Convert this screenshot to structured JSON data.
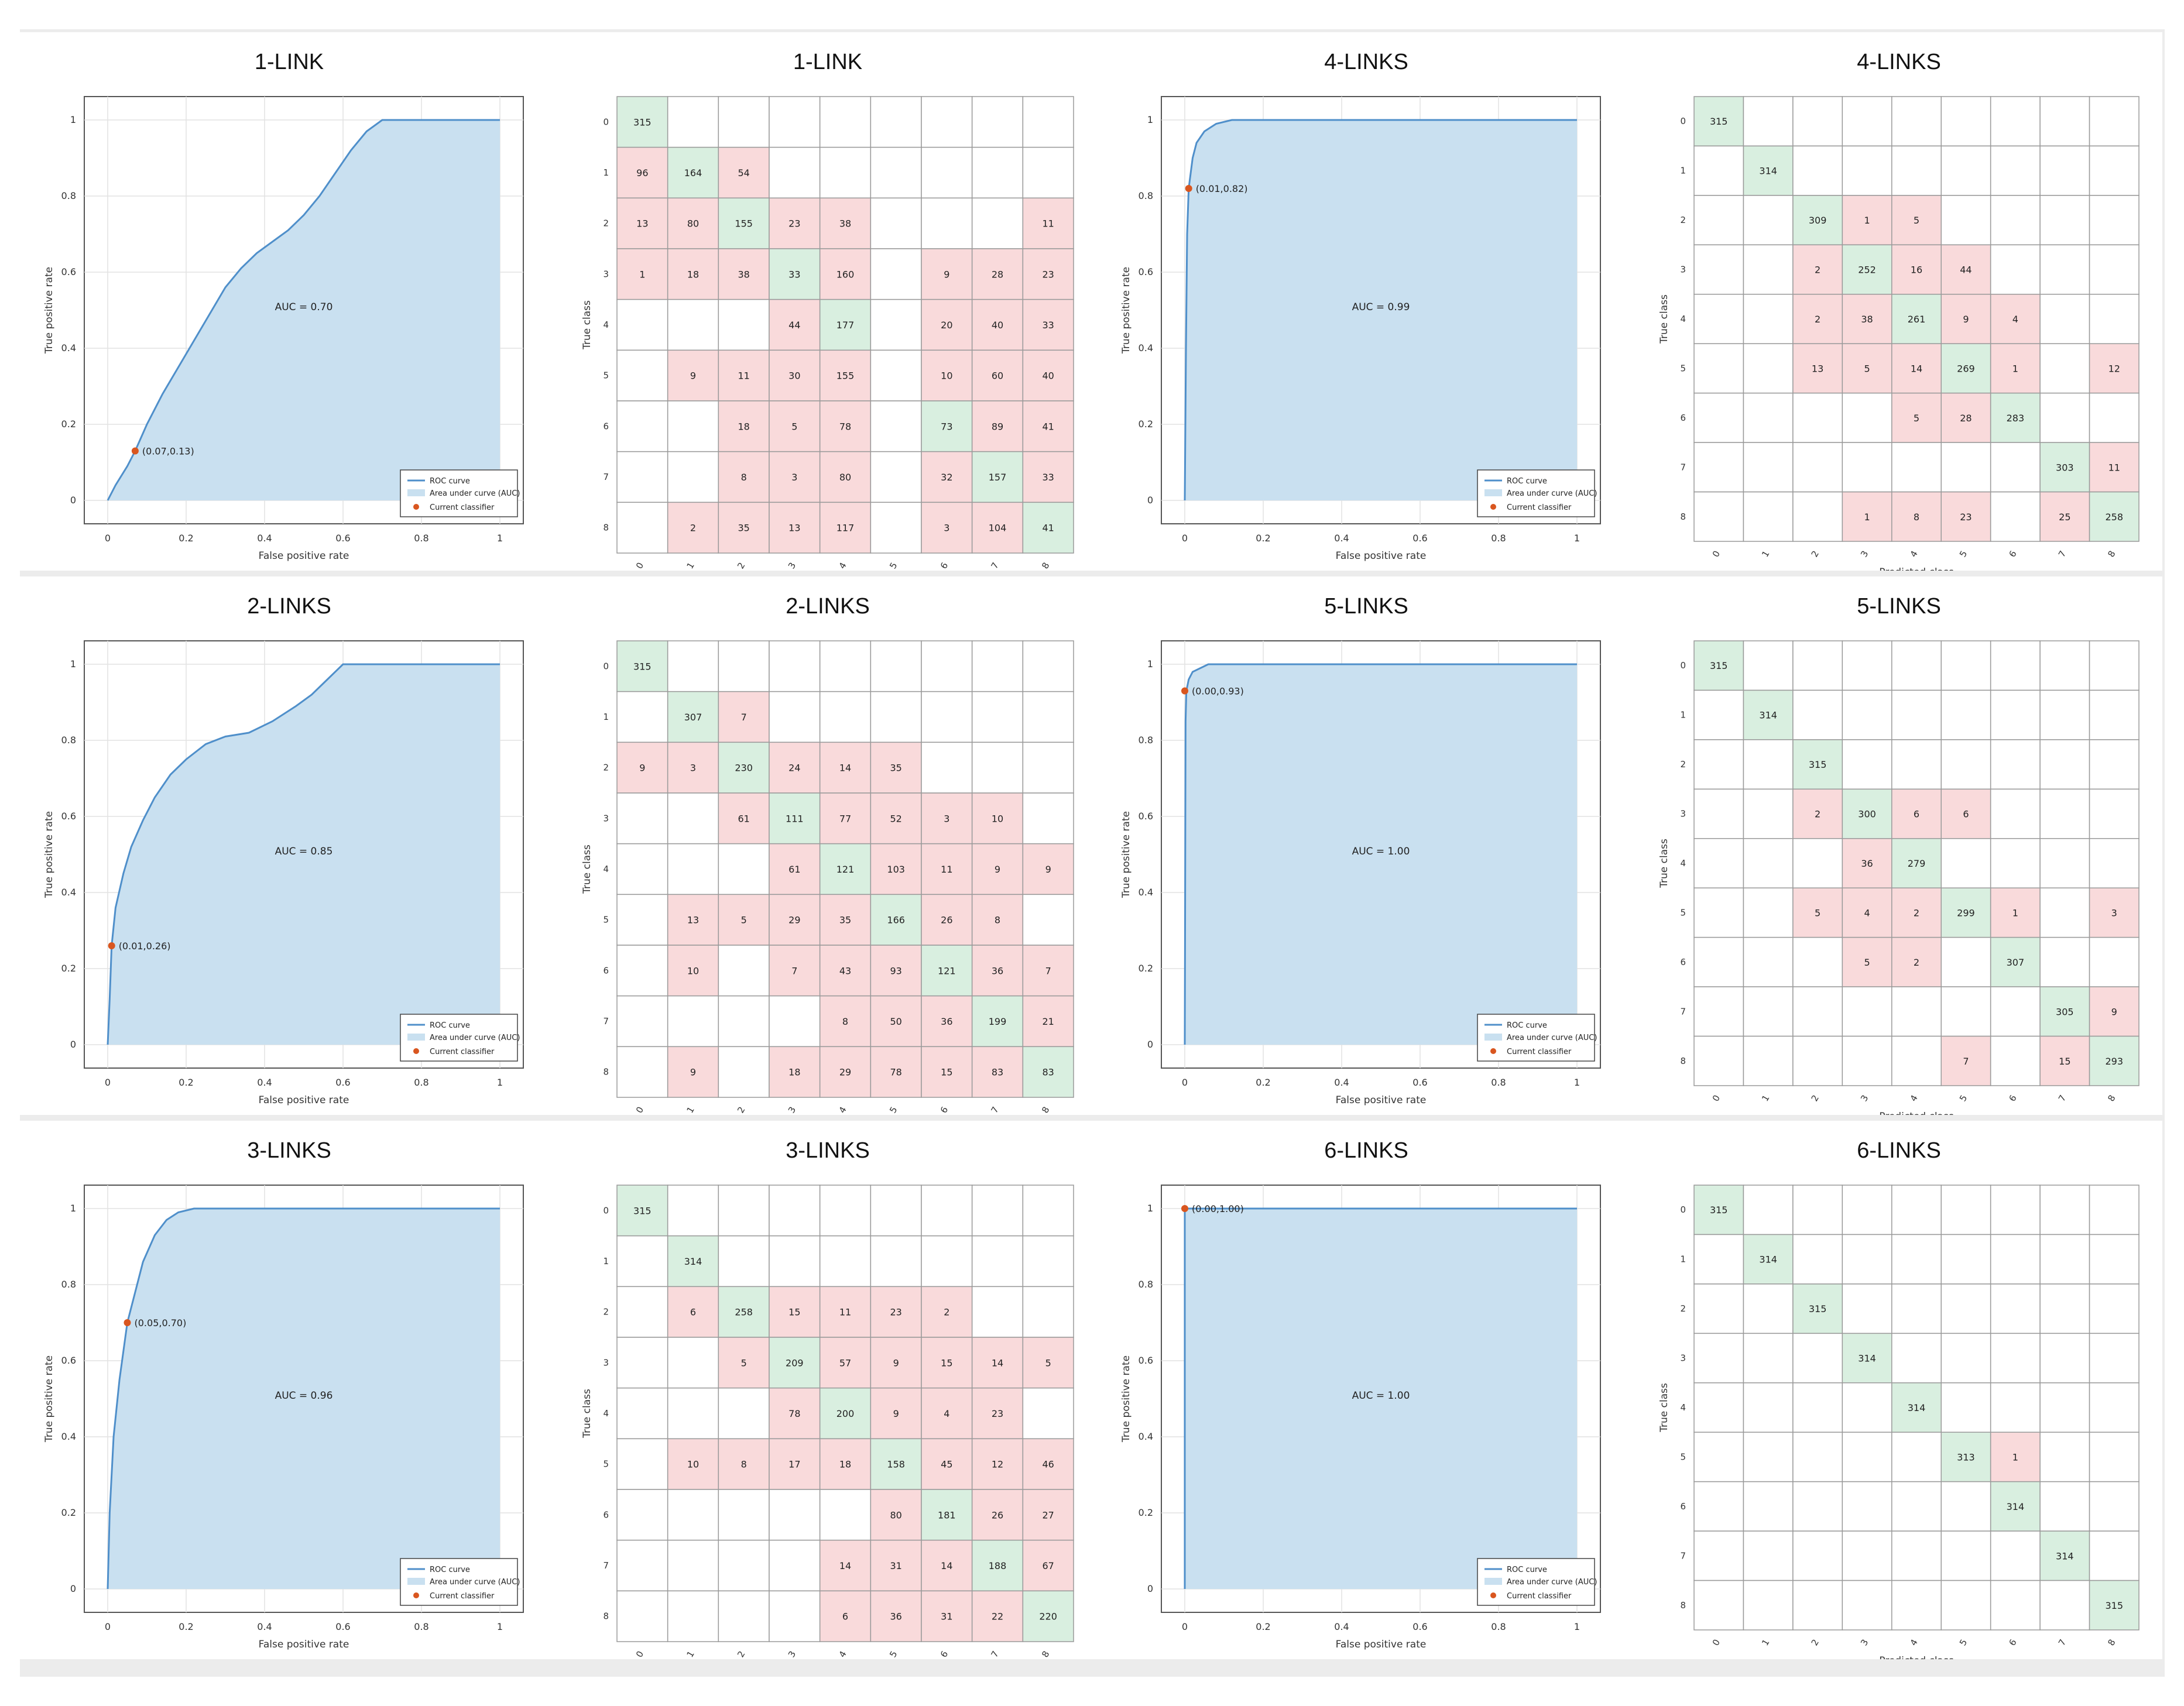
{
  "colors": {
    "auc_fill": "#c9e0f0",
    "roc_line": "#4f8fca",
    "point": "#d9561f",
    "correct_cell": "#d9efe0",
    "wrong_cell": "#f9dadb",
    "grid": "#9a9a9a",
    "figure_bg": "#ececec"
  },
  "roc_labels": {
    "xlabel": "False positive rate",
    "ylabel": "True positive rate",
    "legend": [
      "ROC curve",
      "Area under curve (AUC)",
      "Current classifier"
    ],
    "ticks": [
      "0",
      "0.2",
      "0.4",
      "0.6",
      "0.8",
      "1"
    ]
  },
  "cm_labels": {
    "xlabel": "Predicted class",
    "ylabel": "True class",
    "classes": [
      "0",
      "1",
      "2",
      "3",
      "4",
      "5",
      "6",
      "7",
      "8"
    ]
  },
  "chart_data": [
    {
      "type": "area",
      "panel": "roc-1-link",
      "title": "1-LINK",
      "auc_label": "AUC = 0.70",
      "point_label": "(0.07,0.13)",
      "point": [
        0.07,
        0.13
      ],
      "curve": [
        [
          0,
          0
        ],
        [
          0.02,
          0.04
        ],
        [
          0.05,
          0.09
        ],
        [
          0.07,
          0.13
        ],
        [
          0.1,
          0.2
        ],
        [
          0.14,
          0.28
        ],
        [
          0.18,
          0.35
        ],
        [
          0.22,
          0.42
        ],
        [
          0.26,
          0.49
        ],
        [
          0.3,
          0.56
        ],
        [
          0.34,
          0.61
        ],
        [
          0.38,
          0.65
        ],
        [
          0.42,
          0.68
        ],
        [
          0.46,
          0.71
        ],
        [
          0.5,
          0.75
        ],
        [
          0.54,
          0.8
        ],
        [
          0.58,
          0.86
        ],
        [
          0.62,
          0.92
        ],
        [
          0.66,
          0.97
        ],
        [
          0.7,
          1
        ],
        [
          0.72,
          1
        ],
        [
          1,
          1
        ]
      ],
      "xlim": [
        0,
        1
      ],
      "ylim": [
        0,
        1
      ]
    },
    {
      "type": "table",
      "panel": "cm-1-link",
      "title": "1-LINK",
      "matrix": [
        [
          "315",
          "",
          "",
          "",
          "",
          "",
          "",
          "",
          ""
        ],
        [
          "96",
          "164",
          "54",
          "",
          "",
          "",
          "",
          "",
          ""
        ],
        [
          "13",
          "80",
          "155",
          "23",
          "38",
          "",
          "",
          "",
          "11"
        ],
        [
          "1",
          "18",
          "38",
          "33",
          "160",
          "",
          "9",
          "28",
          "23"
        ],
        [
          "",
          "",
          "",
          "44",
          "177",
          "",
          "20",
          "40",
          "33"
        ],
        [
          "",
          "9",
          "11",
          "30",
          "155",
          "",
          "10",
          "60",
          "40"
        ],
        [
          "",
          "",
          "18",
          "5",
          "78",
          "",
          "73",
          "89",
          "41"
        ],
        [
          "",
          "",
          "8",
          "3",
          "80",
          "",
          "32",
          "157",
          "33"
        ],
        [
          "",
          "2",
          "35",
          "13",
          "117",
          "",
          "3",
          "104",
          "41"
        ]
      ]
    },
    {
      "type": "area",
      "panel": "roc-4-links",
      "title": "4-LINKS",
      "auc_label": "AUC = 0.99",
      "point_label": "(0.01,0.82)",
      "point": [
        0.01,
        0.82
      ],
      "curve": [
        [
          0,
          0
        ],
        [
          0.003,
          0.4
        ],
        [
          0.006,
          0.7
        ],
        [
          0.01,
          0.82
        ],
        [
          0.02,
          0.9
        ],
        [
          0.03,
          0.94
        ],
        [
          0.05,
          0.97
        ],
        [
          0.08,
          0.99
        ],
        [
          0.12,
          1
        ],
        [
          1,
          1
        ]
      ],
      "xlim": [
        0,
        1
      ],
      "ylim": [
        0,
        1
      ]
    },
    {
      "type": "table",
      "panel": "cm-4-links",
      "title": "4-LINKS",
      "matrix": [
        [
          "315",
          "",
          "",
          "",
          "",
          "",
          "",
          "",
          ""
        ],
        [
          "",
          "314",
          "",
          "",
          "",
          "",
          "",
          "",
          ""
        ],
        [
          "",
          "",
          "309",
          "1",
          "5",
          "",
          "",
          "",
          ""
        ],
        [
          "",
          "",
          "2",
          "252",
          "16",
          "44",
          "",
          "",
          ""
        ],
        [
          "",
          "",
          "2",
          "38",
          "261",
          "9",
          "4",
          "",
          ""
        ],
        [
          "",
          "",
          "13",
          "5",
          "14",
          "269",
          "1",
          "",
          "12"
        ],
        [
          "",
          "",
          "",
          "",
          "5",
          "28",
          "283",
          "",
          ""
        ],
        [
          "",
          "",
          "",
          "",
          "",
          "",
          "",
          "303",
          "11"
        ],
        [
          "",
          "",
          "",
          "1",
          "8",
          "23",
          "",
          "25",
          "258"
        ]
      ]
    },
    {
      "type": "area",
      "panel": "roc-2-links",
      "title": "2-LINKS",
      "auc_label": "AUC = 0.85",
      "point_label": "(0.01,0.26)",
      "point": [
        0.01,
        0.26
      ],
      "curve": [
        [
          0,
          0
        ],
        [
          0.005,
          0.12
        ],
        [
          0.01,
          0.26
        ],
        [
          0.02,
          0.36
        ],
        [
          0.04,
          0.45
        ],
        [
          0.06,
          0.52
        ],
        [
          0.09,
          0.59
        ],
        [
          0.12,
          0.65
        ],
        [
          0.16,
          0.71
        ],
        [
          0.2,
          0.75
        ],
        [
          0.25,
          0.79
        ],
        [
          0.3,
          0.81
        ],
        [
          0.36,
          0.82
        ],
        [
          0.42,
          0.85
        ],
        [
          0.48,
          0.89
        ],
        [
          0.52,
          0.92
        ],
        [
          0.56,
          0.96
        ],
        [
          0.6,
          1
        ],
        [
          0.65,
          1
        ],
        [
          1,
          1
        ]
      ],
      "xlim": [
        0,
        1
      ],
      "ylim": [
        0,
        1
      ]
    },
    {
      "type": "table",
      "panel": "cm-2-links",
      "title": "2-LINKS",
      "matrix": [
        [
          "315",
          "",
          "",
          "",
          "",
          "",
          "",
          "",
          ""
        ],
        [
          "",
          "307",
          "7",
          "",
          "",
          "",
          "",
          "",
          ""
        ],
        [
          "9",
          "3",
          "230",
          "24",
          "14",
          "35",
          "",
          "",
          ""
        ],
        [
          "",
          "",
          "61",
          "111",
          "77",
          "52",
          "3",
          "10",
          ""
        ],
        [
          "",
          "",
          "",
          "61",
          "121",
          "103",
          "11",
          "9",
          "9"
        ],
        [
          "",
          "13",
          "5",
          "29",
          "35",
          "166",
          "26",
          "8",
          ""
        ],
        [
          "",
          "10",
          "",
          "7",
          "43",
          "93",
          "121",
          "36",
          "7"
        ],
        [
          "",
          "",
          "",
          "",
          "8",
          "50",
          "36",
          "199",
          "21"
        ],
        [
          "",
          "9",
          "",
          "18",
          "29",
          "78",
          "15",
          "83",
          "83"
        ]
      ]
    },
    {
      "type": "area",
      "panel": "roc-5-links",
      "title": "5-LINKS",
      "auc_label": "AUC = 1.00",
      "point_label": "(0.00,0.93)",
      "point": [
        0.0,
        0.93
      ],
      "curve": [
        [
          0,
          0
        ],
        [
          0.002,
          0.85
        ],
        [
          0.004,
          0.93
        ],
        [
          0.01,
          0.96
        ],
        [
          0.02,
          0.98
        ],
        [
          0.04,
          0.99
        ],
        [
          0.06,
          1
        ],
        [
          1,
          1
        ]
      ],
      "xlim": [
        0,
        1
      ],
      "ylim": [
        0,
        1
      ]
    },
    {
      "type": "table",
      "panel": "cm-5-links",
      "title": "5-LINKS",
      "matrix": [
        [
          "315",
          "",
          "",
          "",
          "",
          "",
          "",
          "",
          ""
        ],
        [
          "",
          "314",
          "",
          "",
          "",
          "",
          "",
          "",
          ""
        ],
        [
          "",
          "",
          "315",
          "",
          "",
          "",
          "",
          "",
          ""
        ],
        [
          "",
          "",
          "2",
          "300",
          "6",
          "6",
          "",
          "",
          ""
        ],
        [
          "",
          "",
          "",
          "36",
          "279",
          "",
          "",
          "",
          ""
        ],
        [
          "",
          "",
          "5",
          "4",
          "2",
          "299",
          "1",
          "",
          "3"
        ],
        [
          "",
          "",
          "",
          "5",
          "2",
          "",
          "307",
          "",
          ""
        ],
        [
          "",
          "",
          "",
          "",
          "",
          "",
          "",
          "305",
          "9"
        ],
        [
          "",
          "",
          "",
          "",
          "",
          "7",
          "",
          "15",
          "293"
        ]
      ]
    },
    {
      "type": "area",
      "panel": "roc-3-links",
      "title": "3-LINKS",
      "auc_label": "AUC = 0.96",
      "point_label": "(0.05,0.70)",
      "point": [
        0.05,
        0.7
      ],
      "curve": [
        [
          0,
          0
        ],
        [
          0.005,
          0.2
        ],
        [
          0.015,
          0.4
        ],
        [
          0.03,
          0.55
        ],
        [
          0.05,
          0.7
        ],
        [
          0.07,
          0.78
        ],
        [
          0.09,
          0.86
        ],
        [
          0.12,
          0.93
        ],
        [
          0.15,
          0.97
        ],
        [
          0.18,
          0.99
        ],
        [
          0.22,
          1
        ],
        [
          1,
          1
        ]
      ],
      "xlim": [
        0,
        1
      ],
      "ylim": [
        0,
        1
      ]
    },
    {
      "type": "table",
      "panel": "cm-3-links",
      "title": "3-LINKS",
      "matrix": [
        [
          "315",
          "",
          "",
          "",
          "",
          "",
          "",
          "",
          ""
        ],
        [
          "",
          "314",
          "",
          "",
          "",
          "",
          "",
          "",
          ""
        ],
        [
          "",
          "6",
          "258",
          "15",
          "11",
          "23",
          "2",
          "",
          ""
        ],
        [
          "",
          "",
          "5",
          "209",
          "57",
          "9",
          "15",
          "14",
          "5"
        ],
        [
          "",
          "",
          "",
          "78",
          "200",
          "9",
          "4",
          "23",
          ""
        ],
        [
          "",
          "10",
          "8",
          "17",
          "18",
          "158",
          "45",
          "12",
          "46"
        ],
        [
          "",
          "",
          "",
          "",
          "",
          "80",
          "181",
          "26",
          "27"
        ],
        [
          "",
          "",
          "",
          "",
          "14",
          "31",
          "14",
          "188",
          "67"
        ],
        [
          "",
          "",
          "",
          "",
          "6",
          "36",
          "31",
          "22",
          "220"
        ]
      ]
    },
    {
      "type": "area",
      "panel": "roc-6-links",
      "title": "6-LINKS",
      "auc_label": "AUC = 1.00",
      "point_label": "(0.00,1.00)",
      "point": [
        0.0,
        1.0
      ],
      "curve": [
        [
          0,
          0
        ],
        [
          0,
          1
        ],
        [
          1,
          1
        ]
      ],
      "xlim": [
        0,
        1
      ],
      "ylim": [
        0,
        1
      ]
    },
    {
      "type": "table",
      "panel": "cm-6-links",
      "title": "6-LINKS",
      "matrix": [
        [
          "315",
          "",
          "",
          "",
          "",
          "",
          "",
          "",
          ""
        ],
        [
          "",
          "314",
          "",
          "",
          "",
          "",
          "",
          "",
          ""
        ],
        [
          "",
          "",
          "315",
          "",
          "",
          "",
          "",
          "",
          ""
        ],
        [
          "",
          "",
          "",
          "314",
          "",
          "",
          "",
          "",
          ""
        ],
        [
          "",
          "",
          "",
          "",
          "314",
          "",
          "",
          "",
          ""
        ],
        [
          "",
          "",
          "",
          "",
          "",
          "313",
          "1",
          "",
          ""
        ],
        [
          "",
          "",
          "",
          "",
          "",
          "",
          "314",
          "",
          ""
        ],
        [
          "",
          "",
          "",
          "",
          "",
          "",
          "",
          "314",
          ""
        ],
        [
          "",
          "",
          "",
          "",
          "",
          "",
          "",
          "",
          "315"
        ]
      ]
    }
  ]
}
